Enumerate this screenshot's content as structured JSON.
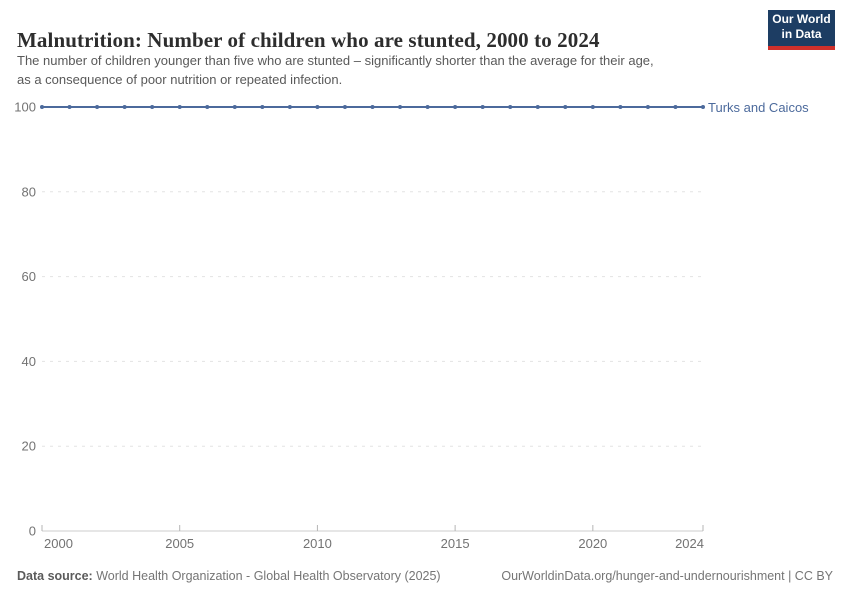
{
  "header": {
    "title": "Malnutrition: Number of children who are stunted, 2000 to 2024",
    "subtitle_lines": [
      "The number of children younger than five who are stunted – significantly shorter than the average for their age,",
      "as a consequence of poor nutrition or repeated infection."
    ],
    "logo": {
      "line1": "Our World",
      "line2": "in Data"
    }
  },
  "chart_data": {
    "type": "line",
    "title": "Malnutrition: Number of children who are stunted, 2000 to 2024",
    "x": [
      2000,
      2001,
      2002,
      2003,
      2004,
      2005,
      2006,
      2007,
      2008,
      2009,
      2010,
      2011,
      2012,
      2013,
      2014,
      2015,
      2016,
      2017,
      2018,
      2019,
      2020,
      2021,
      2022,
      2023,
      2024
    ],
    "series": [
      {
        "name": "Turks and Caicos",
        "color": "#4C6A9C",
        "values": [
          100,
          100,
          100,
          100,
          100,
          100,
          100,
          100,
          100,
          100,
          100,
          100,
          100,
          100,
          100,
          100,
          100,
          100,
          100,
          100,
          100,
          100,
          100,
          100,
          100
        ]
      }
    ],
    "xlabel": "",
    "ylabel": "",
    "xlim": [
      2000,
      2024
    ],
    "ylim": [
      0,
      100
    ],
    "yticks": [
      0,
      20,
      40,
      60,
      80,
      100
    ],
    "xticks": [
      2000,
      2005,
      2010,
      2015,
      2020,
      2024
    ],
    "grid": "horizontal-dashed",
    "legend_position": "end-of-line-label"
  },
  "colors": {
    "series_blue": "#4C6A9C",
    "grid": "#e3e3e3",
    "axis": "#cccccc",
    "tick": "#b5b5b5",
    "tick_label": "#737373",
    "title": "#2d2d2d",
    "subtitle": "#595959",
    "footer": "#757575",
    "logo_bg": "#1d3d63",
    "logo_accent": "#cf302b"
  },
  "footer": {
    "datasource_label": "Data source:",
    "datasource_value": "World Health Organization - Global Health Observatory (2025)",
    "link": "OurWorldinData.org/hunger-and-undernourishment | CC BY"
  }
}
